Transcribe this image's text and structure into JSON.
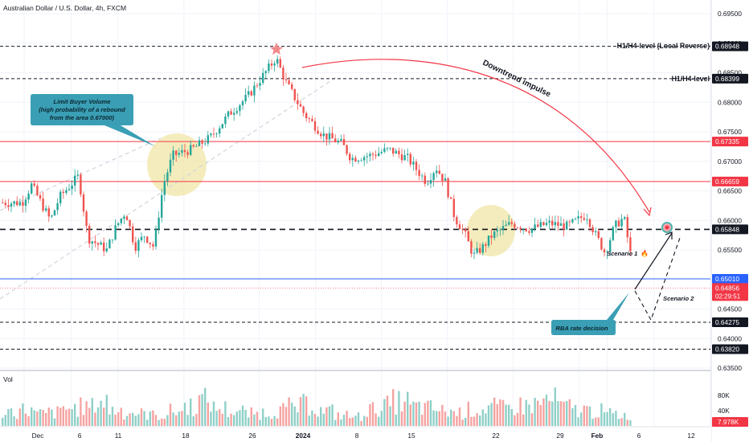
{
  "header": {
    "title": "Australian Dollar / U.S. Dollar, 4h, FXCM"
  },
  "price_axis": {
    "ticks": [
      "0.69500",
      "0.69000",
      "0.68500",
      "0.68000",
      "0.67500",
      "0.67000",
      "0.66500",
      "0.66000",
      "0.65500",
      "0.64500",
      "0.64000",
      "0.63500"
    ],
    "tick_values": [
      0.695,
      0.69,
      0.685,
      0.68,
      0.675,
      0.67,
      0.665,
      0.66,
      0.655,
      0.645,
      0.64,
      0.635
    ]
  },
  "levels": [
    {
      "value": 0.68948,
      "label": "0.68948",
      "style": "dashed",
      "color": "#131722",
      "annotation": "H1/H4-level (Local Reverse)"
    },
    {
      "value": 0.68399,
      "label": "0.68399",
      "style": "dashed",
      "color": "#131722",
      "annotation": "H1/H4-level"
    },
    {
      "value": 0.67335,
      "label": "0.67335",
      "style": "solid",
      "color": "#f23645",
      "annotation": ""
    },
    {
      "value": 0.66659,
      "label": "0.66659",
      "style": "solid",
      "color": "#f23645",
      "annotation": ""
    },
    {
      "value": 0.65848,
      "label": "0.65848",
      "style": "bold-dashed",
      "color": "#131722",
      "annotation": ""
    },
    {
      "value": 0.6501,
      "label": "0.65010",
      "style": "solid",
      "color": "#2962ff",
      "annotation": ""
    },
    {
      "value": 0.64275,
      "label": "0.64275",
      "style": "dashed",
      "color": "#131722",
      "annotation": ""
    },
    {
      "value": 0.6382,
      "label": "0.63820",
      "style": "dashed",
      "color": "#131722",
      "annotation": ""
    }
  ],
  "current_price": {
    "value": 0.64856,
    "label": "0.64856",
    "countdown": "02:29:51",
    "color": "#f23645"
  },
  "annotations": {
    "limit_buyer": [
      "Limit Buyer Volume",
      "(high probability of a rebound",
      "from the area 0.67000)"
    ],
    "downtrend": "Downtrend impulse",
    "scenario1": "Scenario 1",
    "scenario2": "Scenario 2",
    "rba": "RBA rate decision"
  },
  "volume": {
    "label": "Vol",
    "ticks": [
      "80K",
      "40K"
    ],
    "tick_values": [
      80000,
      40000
    ],
    "current": "7.978K"
  },
  "time_axis": {
    "labels": [
      "Dec",
      "6",
      "11",
      "18",
      "26",
      "2024",
      "8",
      "15",
      "22",
      "29",
      "Feb",
      "6",
      "12"
    ]
  },
  "colors": {
    "up": "#26a69a",
    "down": "#ef5350",
    "up_vol": "#8fd0c8",
    "down_vol": "#f5a3a1",
    "zone": "#f0e6a6",
    "callout": "#3a9fb5"
  },
  "chart_data": {
    "type": "candlestick",
    "title": "Australian Dollar / U.S. Dollar, 4h, FXCM",
    "ylim": [
      0.633,
      0.697
    ],
    "anchors": [
      {
        "time": "Dec 1",
        "price": 0.663
      },
      {
        "time": "Dec 2",
        "price": 0.666
      },
      {
        "time": "Dec 4",
        "price": 0.66
      },
      {
        "time": "Dec 5",
        "price": 0.664
      },
      {
        "time": "Dec 7",
        "price": 0.6675
      },
      {
        "time": "Dec 8",
        "price": 0.657
      },
      {
        "time": "Dec 10",
        "price": 0.655
      },
      {
        "time": "Dec 11",
        "price": 0.659
      },
      {
        "time": "Dec 12",
        "price": 0.6615
      },
      {
        "time": "Dec 13",
        "price": 0.6555
      },
      {
        "time": "Dec 14",
        "price": 0.6575
      },
      {
        "time": "Dec 15",
        "price": 0.6555
      },
      {
        "time": "Dec 16",
        "price": 0.666
      },
      {
        "time": "Dec 17",
        "price": 0.671
      },
      {
        "time": "Dec 19",
        "price": 0.672
      },
      {
        "time": "Dec 21",
        "price": 0.674
      },
      {
        "time": "Dec 23",
        "price": 0.678
      },
      {
        "time": "Dec 25",
        "price": 0.681
      },
      {
        "time": "Dec 28",
        "price": 0.6875
      },
      {
        "time": "Dec 29",
        "price": 0.6835
      },
      {
        "time": "Dec 31",
        "price": 0.678
      },
      {
        "time": "Jan 2",
        "price": 0.6745
      },
      {
        "time": "Jan 4",
        "price": 0.673
      },
      {
        "time": "Jan 5",
        "price": 0.6705
      },
      {
        "time": "Jan 7",
        "price": 0.671
      },
      {
        "time": "Jan 9",
        "price": 0.672
      },
      {
        "time": "Jan 11",
        "price": 0.6705
      },
      {
        "time": "Jan 13",
        "price": 0.6665
      },
      {
        "time": "Jan 14",
        "price": 0.669
      },
      {
        "time": "Jan 15",
        "price": 0.6665
      },
      {
        "time": "Jan 16",
        "price": 0.6605
      },
      {
        "time": "Jan 17",
        "price": 0.658
      },
      {
        "time": "Jan 18",
        "price": 0.654
      },
      {
        "time": "Jan 19",
        "price": 0.6555
      },
      {
        "time": "Jan 20",
        "price": 0.6575
      },
      {
        "time": "Jan 22",
        "price": 0.6595
      },
      {
        "time": "Jan 24",
        "price": 0.6585
      },
      {
        "time": "Jan 26",
        "price": 0.6595
      },
      {
        "time": "Jan 28",
        "price": 0.659
      },
      {
        "time": "Jan 30",
        "price": 0.661
      },
      {
        "time": "Jan 31",
        "price": 0.6575
      },
      {
        "time": "Feb 1",
        "price": 0.6545
      },
      {
        "time": "Feb 2",
        "price": 0.659
      },
      {
        "time": "Feb 3",
        "price": 0.6605
      },
      {
        "time": "Feb 4",
        "price": 0.6515
      },
      {
        "time": "Feb 5",
        "price": 0.6495
      },
      {
        "time": "Feb 5",
        "price": 0.64856
      }
    ],
    "volume_profile": [
      55,
      60,
      45,
      50,
      65,
      70,
      90,
      60,
      50,
      45,
      40,
      55,
      75,
      95,
      65,
      55,
      45,
      50,
      60,
      70,
      80,
      55,
      40,
      35,
      60,
      75,
      90,
      70,
      65,
      55,
      50,
      60,
      70,
      65,
      75,
      80,
      95,
      70,
      60,
      55,
      45,
      40
    ]
  }
}
